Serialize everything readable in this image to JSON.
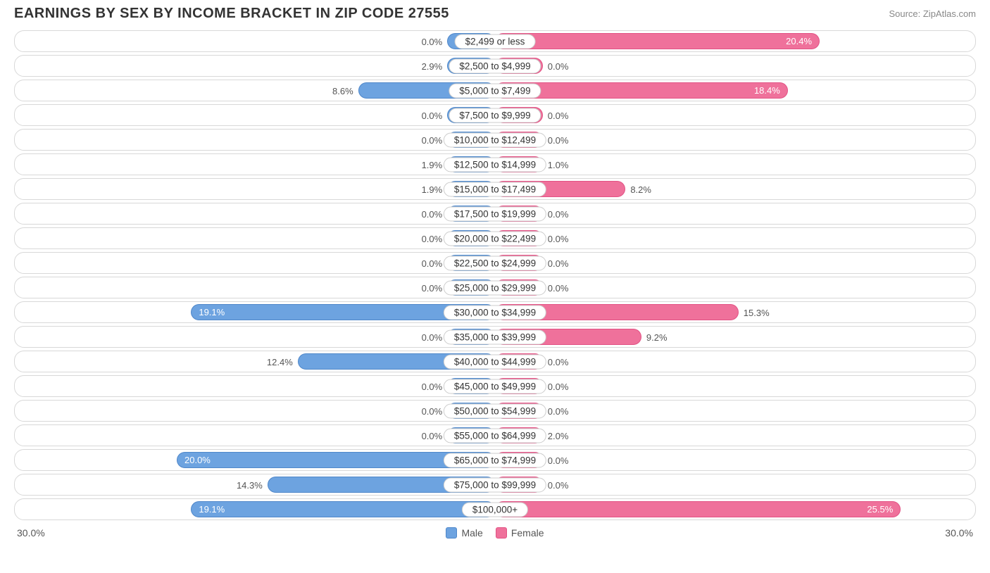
{
  "title": "EARNINGS BY SEX BY INCOME BRACKET IN ZIP CODE 27555",
  "source": "Source: ZipAtlas.com",
  "axis_max_label": "30.0%",
  "axis_max_value": 30.0,
  "min_bar_pct": 3.0,
  "inside_label_threshold_pct": 17.0,
  "colors": {
    "male_fill": "#6da3e0",
    "male_border": "#4f87c9",
    "female_fill": "#ef719b",
    "female_border": "#e25284",
    "row_border": "#d8d8d8",
    "text": "#333333",
    "text_muted": "#555555",
    "background": "#ffffff"
  },
  "legend": {
    "male": "Male",
    "female": "Female"
  },
  "rows": [
    {
      "label": "$2,499 or less",
      "male": 0.0,
      "female": 20.4
    },
    {
      "label": "$2,500 to $4,999",
      "male": 2.9,
      "female": 0.0
    },
    {
      "label": "$5,000 to $7,499",
      "male": 8.6,
      "female": 18.4
    },
    {
      "label": "$7,500 to $9,999",
      "male": 0.0,
      "female": 0.0
    },
    {
      "label": "$10,000 to $12,499",
      "male": 0.0,
      "female": 0.0
    },
    {
      "label": "$12,500 to $14,999",
      "male": 1.9,
      "female": 1.0
    },
    {
      "label": "$15,000 to $17,499",
      "male": 1.9,
      "female": 8.2
    },
    {
      "label": "$17,500 to $19,999",
      "male": 0.0,
      "female": 0.0
    },
    {
      "label": "$20,000 to $22,499",
      "male": 0.0,
      "female": 0.0
    },
    {
      "label": "$22,500 to $24,999",
      "male": 0.0,
      "female": 0.0
    },
    {
      "label": "$25,000 to $29,999",
      "male": 0.0,
      "female": 0.0
    },
    {
      "label": "$30,000 to $34,999",
      "male": 19.1,
      "female": 15.3
    },
    {
      "label": "$35,000 to $39,999",
      "male": 0.0,
      "female": 9.2
    },
    {
      "label": "$40,000 to $44,999",
      "male": 12.4,
      "female": 0.0
    },
    {
      "label": "$45,000 to $49,999",
      "male": 0.0,
      "female": 0.0
    },
    {
      "label": "$50,000 to $54,999",
      "male": 0.0,
      "female": 0.0
    },
    {
      "label": "$55,000 to $64,999",
      "male": 0.0,
      "female": 2.0
    },
    {
      "label": "$65,000 to $74,999",
      "male": 20.0,
      "female": 0.0
    },
    {
      "label": "$75,000 to $99,999",
      "male": 14.3,
      "female": 0.0
    },
    {
      "label": "$100,000+",
      "male": 19.1,
      "female": 25.5
    }
  ]
}
